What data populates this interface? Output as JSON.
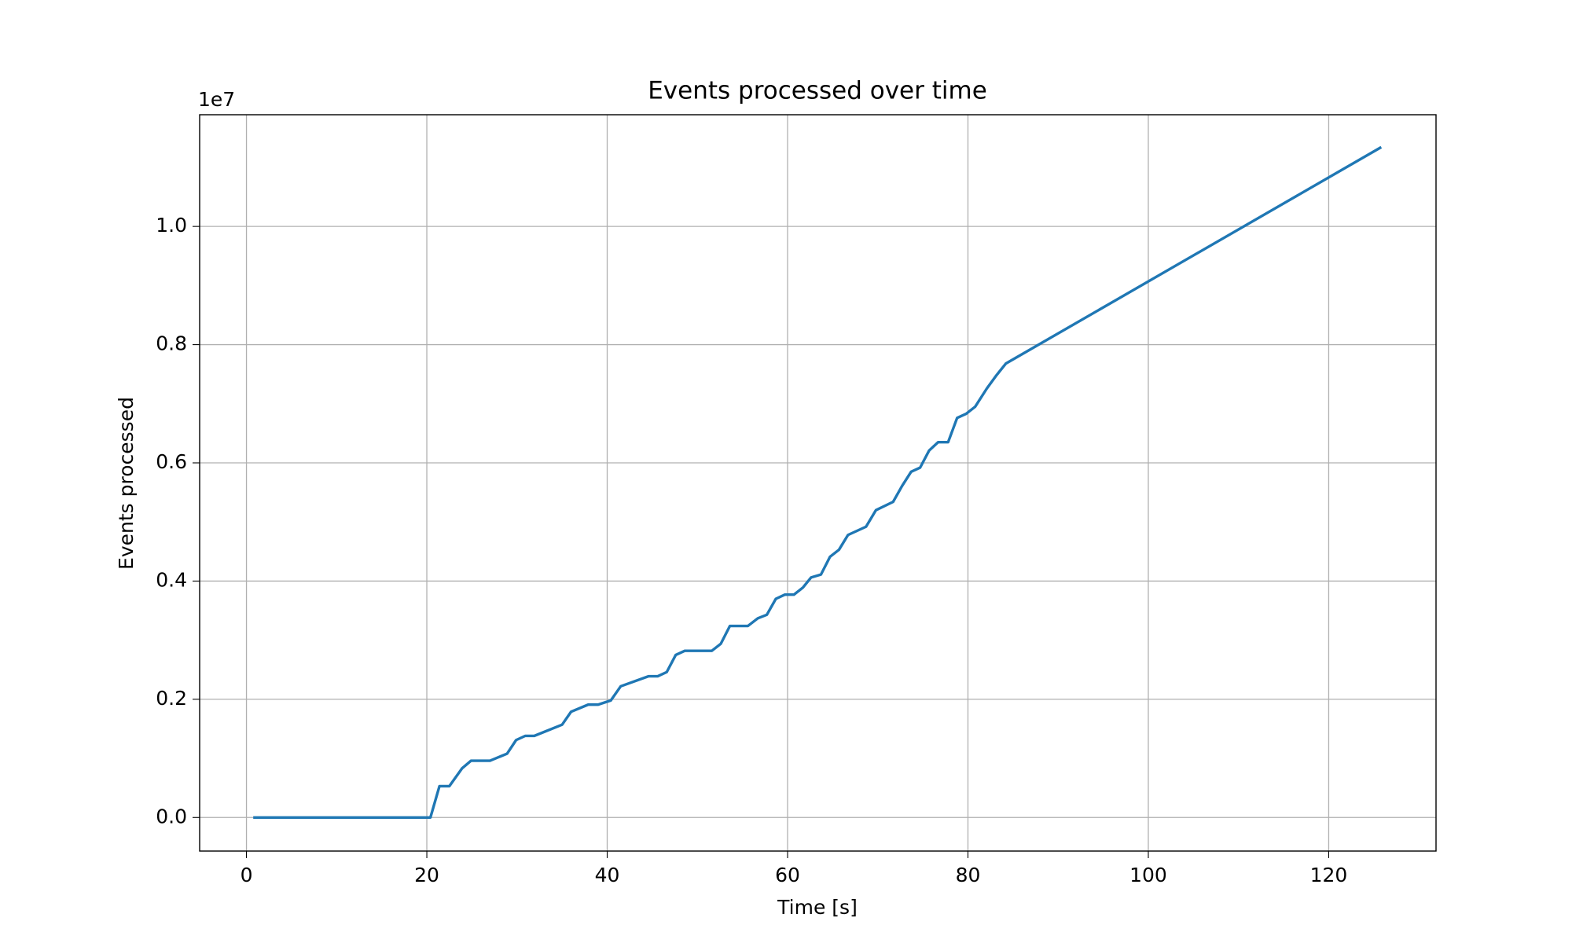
{
  "chart_data": {
    "type": "line",
    "title": "Events processed over time",
    "x_label": "Time [s]",
    "y_label": "Events processed",
    "y_offset_label": "1e7",
    "x": [
      0.9,
      20.4,
      21.4,
      22.5,
      23.9,
      24.9,
      27.0,
      28.9,
      29.9,
      30.9,
      31.9,
      35.0,
      36.0,
      37.9,
      39.0,
      40.4,
      41.5,
      44.6,
      45.6,
      46.6,
      47.6,
      48.6,
      51.6,
      52.6,
      53.6,
      55.6,
      56.7,
      57.7,
      58.7,
      59.7,
      60.7,
      61.7,
      62.6,
      63.7,
      64.7,
      65.7,
      66.7,
      68.7,
      69.8,
      71.7,
      72.7,
      73.7,
      74.7,
      75.7,
      76.7,
      77.8,
      78.8,
      79.8,
      80.8,
      82.1,
      83.1,
      84.2,
      125.7
    ],
    "series": [
      {
        "name": "Events processed",
        "color": "#1f77b4",
        "values": [
          0,
          0,
          0.053,
          0.053,
          0.083,
          0.096,
          0.096,
          0.108,
          0.131,
          0.138,
          0.138,
          0.157,
          0.179,
          0.191,
          0.191,
          0.198,
          0.222,
          0.239,
          0.239,
          0.246,
          0.275,
          0.282,
          0.282,
          0.294,
          0.324,
          0.324,
          0.337,
          0.343,
          0.37,
          0.377,
          0.377,
          0.389,
          0.406,
          0.411,
          0.441,
          0.453,
          0.478,
          0.492,
          0.52,
          0.534,
          0.561,
          0.585,
          0.592,
          0.621,
          0.635,
          0.635,
          0.676,
          0.683,
          0.695,
          0.726,
          0.747,
          0.768,
          1.133
        ]
      }
    ],
    "xlim": [
      -5.19,
      131.9
    ],
    "ylim": [
      -0.0568,
      1.189
    ],
    "xticks": [
      0,
      20,
      40,
      60,
      80,
      100,
      120
    ],
    "yticks": [
      {
        "value": 0,
        "label": "0.0"
      },
      {
        "value": 0.2,
        "label": "0.2"
      },
      {
        "value": 0.4,
        "label": "0.4"
      },
      {
        "value": 0.6,
        "label": "0.6"
      },
      {
        "value": 0.8,
        "label": "0.8"
      },
      {
        "value": 1.0,
        "label": "1.0"
      }
    ],
    "grid": true
  }
}
